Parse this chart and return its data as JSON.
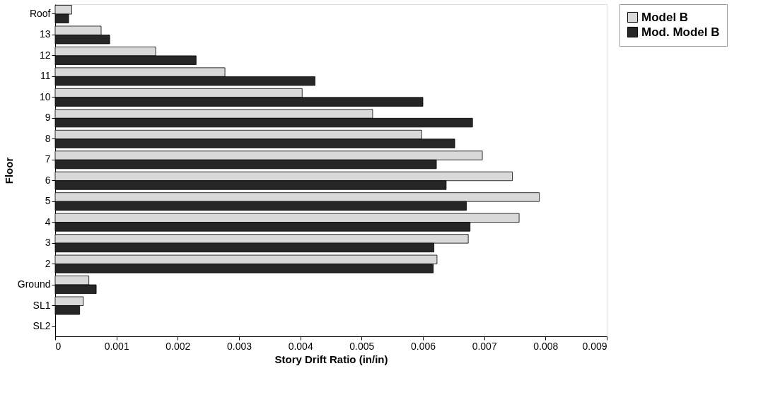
{
  "chart_data": {
    "type": "bar",
    "orientation": "horizontal",
    "xlabel": "Story Drift Ratio (in/in)",
    "ylabel": "Floor",
    "categories": [
      "Roof",
      "13",
      "12",
      "11",
      "10",
      "9",
      "8",
      "7",
      "6",
      "5",
      "4",
      "3",
      "2",
      "Ground",
      "SL1",
      "SL2"
    ],
    "series": [
      {
        "name": "Model B",
        "color": "#d9d9d9",
        "values": [
          0.00027,
          0.00075,
          0.00164,
          0.00277,
          0.00403,
          0.00518,
          0.00598,
          0.00697,
          0.00746,
          0.0079,
          0.00757,
          0.00674,
          0.00623,
          0.00055,
          0.00046,
          null
        ]
      },
      {
        "name": "Mod. Model B",
        "color": "#262626",
        "values": [
          0.00022,
          0.00089,
          0.0023,
          0.00424,
          0.006,
          0.00681,
          0.00652,
          0.00622,
          0.00638,
          0.00671,
          0.00677,
          0.00618,
          0.00617,
          0.00067,
          0.0004,
          null
        ]
      }
    ],
    "xlim": [
      0,
      0.009
    ],
    "xticks": [
      0,
      0.001,
      0.002,
      0.003,
      0.004,
      0.005,
      0.006,
      0.007,
      0.008,
      0.009
    ],
    "grid": false,
    "legend": "right"
  }
}
